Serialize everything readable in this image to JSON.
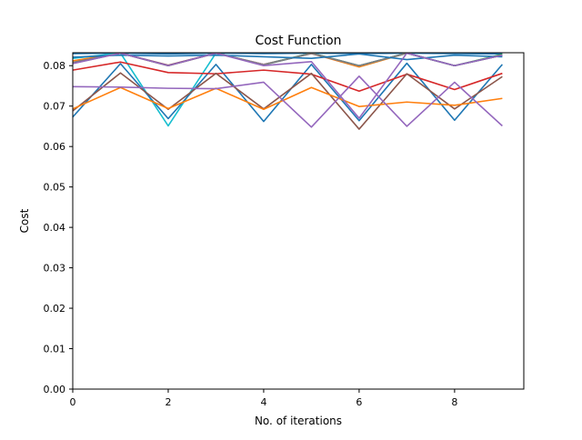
{
  "chart_data": {
    "type": "line",
    "title": "Cost Function",
    "xlabel": "No. of iterations",
    "ylabel": "Cost",
    "xlim": [
      0,
      9.45
    ],
    "ylim": [
      0,
      0.0832
    ],
    "grid": false,
    "legend": "none",
    "x": [
      0,
      1,
      2,
      3,
      4,
      5,
      6,
      7,
      8,
      9
    ],
    "x_ticks": [
      0,
      2,
      4,
      6,
      8
    ],
    "x_tick_labels": [
      "0",
      "2",
      "4",
      "6",
      "8"
    ],
    "y_ticks": [
      0,
      0.01,
      0.02,
      0.03,
      0.04,
      0.05,
      0.06,
      0.07,
      0.08
    ],
    "y_tick_labels": [
      "0.00",
      "0.01",
      "0.02",
      "0.03",
      "0.04",
      "0.05",
      "0.06",
      "0.07",
      "0.08"
    ],
    "series": [
      {
        "color": "#1f77b4",
        "values": [
          0.083,
          0.0831,
          0.0829,
          0.0831,
          0.083,
          0.0831,
          0.083,
          0.0831,
          0.083,
          0.0829
        ]
      },
      {
        "color": "#ff7f0e",
        "values": [
          0.0812,
          0.0831,
          0.08,
          0.0831,
          0.0803,
          0.083,
          0.0797,
          0.0831,
          0.08,
          0.0826
        ]
      },
      {
        "color": "#2ca02c",
        "values": [
          0.0806,
          0.0831,
          0.08,
          0.0831,
          0.0803,
          0.0831,
          0.08,
          0.0831,
          0.08,
          0.0828
        ]
      },
      {
        "color": "#e377c2",
        "values": [
          0.0806,
          0.0831,
          0.0801,
          0.0831,
          0.0803,
          0.083,
          0.08,
          0.0831,
          0.08,
          0.0826
        ]
      },
      {
        "color": "#8c564b",
        "values": [
          0.0808,
          0.0831,
          0.0801,
          0.0831,
          0.0802,
          0.083,
          0.08,
          0.0831,
          0.08,
          0.0826
        ]
      },
      {
        "color": "#17becf",
        "values": [
          0.0818,
          0.0831,
          0.0651,
          0.0831,
          0.0802,
          0.0831,
          0.08,
          0.0831,
          0.08,
          0.0826
        ]
      },
      {
        "color": "#7f7f7f",
        "values": [
          0.0808,
          0.0831,
          0.08,
          0.0831,
          0.0802,
          0.0831,
          0.08,
          0.0831,
          0.08,
          0.0826
        ]
      },
      {
        "color": "#1f77b4",
        "values": [
          0.0821,
          0.0826,
          0.0824,
          0.0826,
          0.0822,
          0.0818,
          0.0829,
          0.0815,
          0.0826,
          0.0822
        ]
      },
      {
        "color": "#1f77b4",
        "values": [
          0.0673,
          0.0805,
          0.0669,
          0.0803,
          0.0662,
          0.0803,
          0.0664,
          0.0806,
          0.0665,
          0.0803
        ]
      },
      {
        "color": "#d62728",
        "values": [
          0.0789,
          0.0809,
          0.0783,
          0.078,
          0.0789,
          0.0779,
          0.0737,
          0.0779,
          0.0741,
          0.0781
        ]
      },
      {
        "color": "#8c564b",
        "values": [
          0.0688,
          0.0782,
          0.0692,
          0.0781,
          0.0693,
          0.0781,
          0.0643,
          0.078,
          0.0693,
          0.0773
        ]
      },
      {
        "color": "#ff7f0e",
        "values": [
          0.0693,
          0.0746,
          0.0694,
          0.0744,
          0.0692,
          0.0746,
          0.0699,
          0.071,
          0.0702,
          0.0719
        ]
      },
      {
        "color": "#9467bd",
        "values": [
          0.0748,
          0.0747,
          0.0744,
          0.0743,
          0.0759,
          0.0648,
          0.0774,
          0.065,
          0.0759,
          0.0651
        ]
      },
      {
        "color": "#9467bd",
        "values": [
          0.0805,
          0.0831,
          0.08,
          0.0831,
          0.08,
          0.081,
          0.067,
          0.0831,
          0.08,
          0.0826
        ]
      }
    ]
  }
}
